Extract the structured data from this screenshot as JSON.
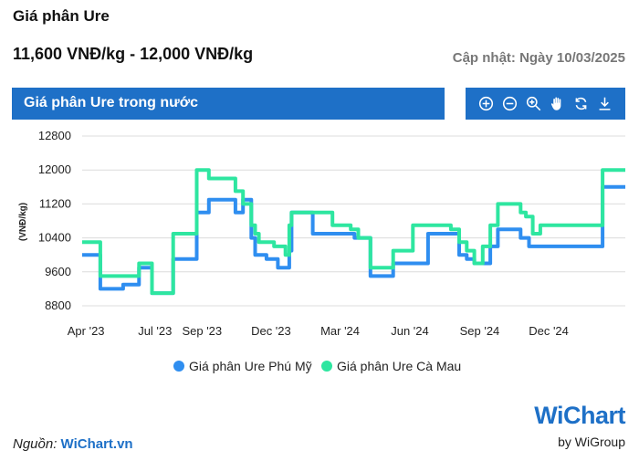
{
  "header": {
    "title": "Giá phân Ure",
    "price_range": "11,600 VNĐ/kg - 12,000 VNĐ/kg",
    "updated": "Cập nhật: Ngày 10/03/2025"
  },
  "panel": {
    "title": "Giá phân Ure trong nước",
    "toolbar": [
      "zoom-in-icon",
      "zoom-out-icon",
      "magnify-icon",
      "pan-hand-icon",
      "reset-icon",
      "download-icon"
    ]
  },
  "footer": {
    "source_label": "Nguồn:",
    "source_value": "WiChart.vn",
    "logo_text": "WiChart",
    "logo_sub": "by WiGroup"
  },
  "colors": {
    "accent": "#1e70c7",
    "phu_my": "#2f8ef0",
    "ca_mau": "#2ee6a0",
    "grid": "#dcdcdc"
  },
  "chart_data": {
    "type": "line",
    "title": "",
    "xlabel": "",
    "ylabel": "(VNĐ/kg)",
    "ylim": [
      8800,
      12800
    ],
    "xlim": [
      "2023-03-27",
      "2025-03-12"
    ],
    "yticks": [
      8800,
      9600,
      10400,
      11200,
      12000,
      12800
    ],
    "xticks": [
      {
        "label": "Apr '23",
        "date": "2023-04-01"
      },
      {
        "label": "Jul '23",
        "date": "2023-07-01"
      },
      {
        "label": "Sep '23",
        "date": "2023-09-01"
      },
      {
        "label": "Dec '23",
        "date": "2023-12-01"
      },
      {
        "label": "Mar '24",
        "date": "2024-03-01"
      },
      {
        "label": "Jun '24",
        "date": "2024-06-01"
      },
      {
        "label": "Sep '24",
        "date": "2024-09-01"
      },
      {
        "label": "Dec '24",
        "date": "2024-12-01"
      }
    ],
    "step": true,
    "grid": true,
    "legend": "bottom-center",
    "series": [
      {
        "name": "Giá phân Ure Phú Mỹ",
        "color": "#2f8ef0",
        "points": [
          [
            "2023-03-27",
            10000
          ],
          [
            "2023-04-20",
            9200
          ],
          [
            "2023-05-20",
            9300
          ],
          [
            "2023-06-10",
            9700
          ],
          [
            "2023-06-27",
            9100
          ],
          [
            "2023-07-25",
            9900
          ],
          [
            "2023-08-25",
            11000
          ],
          [
            "2023-09-10",
            11300
          ],
          [
            "2023-10-15",
            11000
          ],
          [
            "2023-10-25",
            11300
          ],
          [
            "2023-11-05",
            10400
          ],
          [
            "2023-11-10",
            10000
          ],
          [
            "2023-11-25",
            9900
          ],
          [
            "2023-12-10",
            9700
          ],
          [
            "2023-12-25",
            10100
          ],
          [
            "2023-12-28",
            11000
          ],
          [
            "2024-01-25",
            10500
          ],
          [
            "2024-03-20",
            10400
          ],
          [
            "2024-04-10",
            9500
          ],
          [
            "2024-05-10",
            9800
          ],
          [
            "2024-06-25",
            10500
          ],
          [
            "2024-08-05",
            10000
          ],
          [
            "2024-08-15",
            9900
          ],
          [
            "2024-08-25",
            9800
          ],
          [
            "2024-09-15",
            10200
          ],
          [
            "2024-09-25",
            10600
          ],
          [
            "2024-10-25",
            10400
          ],
          [
            "2024-11-05",
            10200
          ],
          [
            "2024-11-10",
            10200
          ],
          [
            "2024-12-01",
            10200
          ],
          [
            "2025-01-20",
            10200
          ],
          [
            "2025-02-10",
            11600
          ],
          [
            "2025-02-15",
            11600
          ],
          [
            "2025-03-12",
            11600
          ]
        ]
      },
      {
        "name": "Giá phân Ure Cà Mau",
        "color": "#2ee6a0",
        "points": [
          [
            "2023-03-27",
            10300
          ],
          [
            "2023-04-20",
            9500
          ],
          [
            "2023-06-10",
            9800
          ],
          [
            "2023-06-27",
            9100
          ],
          [
            "2023-07-25",
            10500
          ],
          [
            "2023-08-25",
            12000
          ],
          [
            "2023-09-10",
            11800
          ],
          [
            "2023-10-15",
            11500
          ],
          [
            "2023-10-25",
            11200
          ],
          [
            "2023-11-05",
            10700
          ],
          [
            "2023-11-10",
            10500
          ],
          [
            "2023-11-15",
            10300
          ],
          [
            "2023-12-05",
            10200
          ],
          [
            "2023-12-20",
            10000
          ],
          [
            "2023-12-25",
            10700
          ],
          [
            "2023-12-28",
            11000
          ],
          [
            "2024-02-20",
            10700
          ],
          [
            "2024-03-15",
            10600
          ],
          [
            "2024-03-25",
            10400
          ],
          [
            "2024-04-10",
            9700
          ],
          [
            "2024-05-10",
            10100
          ],
          [
            "2024-06-05",
            10700
          ],
          [
            "2024-07-25",
            10600
          ],
          [
            "2024-08-05",
            10300
          ],
          [
            "2024-08-15",
            10100
          ],
          [
            "2024-08-25",
            9800
          ],
          [
            "2024-09-05",
            10200
          ],
          [
            "2024-09-15",
            10700
          ],
          [
            "2024-09-25",
            11200
          ],
          [
            "2024-10-25",
            11000
          ],
          [
            "2024-11-01",
            10900
          ],
          [
            "2024-11-10",
            10500
          ],
          [
            "2024-11-20",
            10700
          ],
          [
            "2025-01-20",
            10700
          ],
          [
            "2025-02-10",
            12000
          ],
          [
            "2025-03-12",
            12000
          ]
        ]
      }
    ]
  }
}
